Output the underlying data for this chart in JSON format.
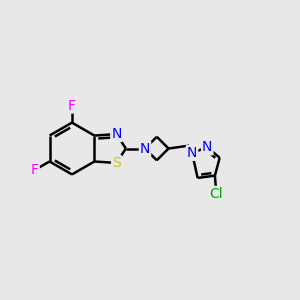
{
  "bg_color": "#e8e8e8",
  "bond_color": "#000000",
  "bond_width": 1.8,
  "atom_colors": {
    "F": "#ff00ff",
    "N": "#0000ff",
    "S": "#cccc00",
    "Cl": "#00aa00",
    "C": "#000000"
  },
  "font_size": 10,
  "figsize": [
    3.0,
    3.0
  ],
  "dpi": 100,
  "xlim": [
    0.0,
    10.0
  ],
  "ylim": [
    1.5,
    8.5
  ]
}
